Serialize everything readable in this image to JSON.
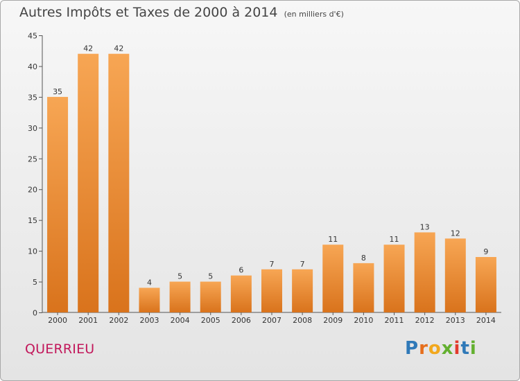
{
  "header": {
    "title": "Autres Impôts et Taxes de 2000 à 2014",
    "unit": "(en milliers d'€)"
  },
  "footer": {
    "city": "QUERRIEU",
    "logo": "Proxiti"
  },
  "colors": {
    "bar_light": "#f7a654",
    "bar_dark": "#d9731c",
    "city": "#c2185b",
    "logo_letters": [
      "#2f79b8",
      "#e66e1c",
      "#f2a81d",
      "#63b02f",
      "#e23b2e",
      "#2f79b8",
      "#63b02f"
    ]
  },
  "chart_data": {
    "type": "bar",
    "title": "Autres Impôts et Taxes de 2000 à 2014",
    "subtitle": "(en milliers d'€)",
    "categories": [
      "2000",
      "2001",
      "2002",
      "2003",
      "2004",
      "2005",
      "2006",
      "2007",
      "2008",
      "2009",
      "2010",
      "2011",
      "2012",
      "2013",
      "2014"
    ],
    "values": [
      35,
      42,
      42,
      4,
      5,
      5,
      6,
      7,
      7,
      11,
      8,
      11,
      13,
      12,
      9
    ],
    "ylim": [
      0,
      45
    ],
    "yticks": [
      0,
      5,
      10,
      15,
      20,
      25,
      30,
      35,
      40,
      45
    ],
    "grid": false,
    "legend": "none"
  }
}
